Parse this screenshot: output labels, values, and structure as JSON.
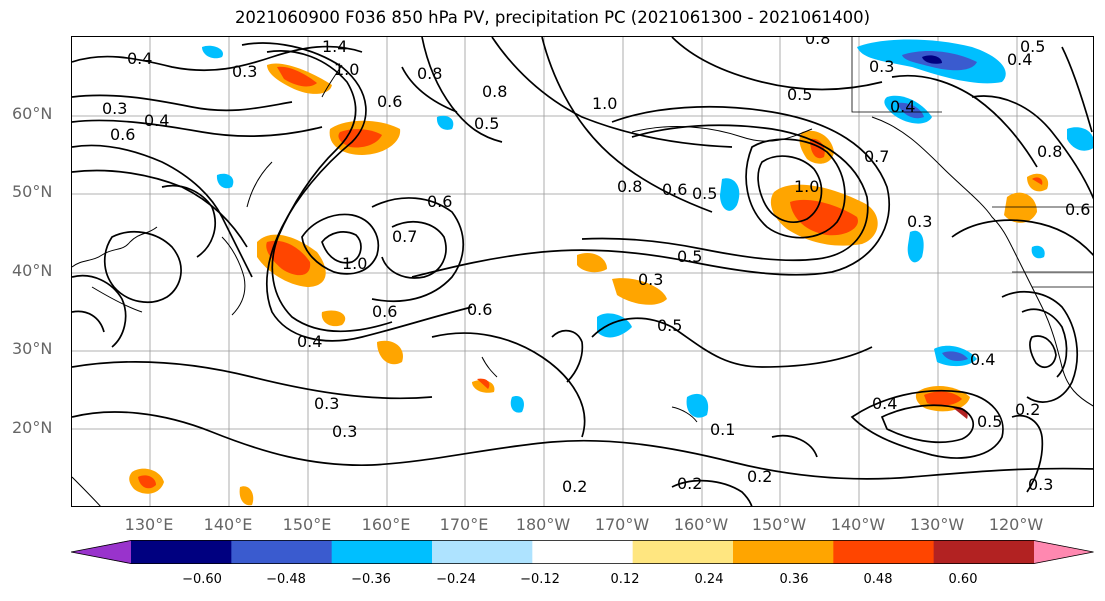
{
  "title": "2021060900 F036 850 hPa PV, precipitation PC (2021061300 - 2021061400)",
  "lat_labels": [
    "60°N",
    "50°N",
    "40°N",
    "30°N",
    "20°N"
  ],
  "lon_labels": [
    "130°E",
    "140°E",
    "150°E",
    "160°E",
    "170°E",
    "180°W",
    "170°W",
    "160°W",
    "150°W",
    "140°W",
    "130°W",
    "120°W"
  ],
  "colorbar": {
    "colors": [
      "#9933cc",
      "#000080",
      "#3a5bcf",
      "#00bfff",
      "#aee3ff",
      "#ffffff",
      "#ffe680",
      "#ffa500",
      "#ff4500",
      "#b22222",
      "#ff88b0"
    ],
    "ticks": [
      "−0.60",
      "−0.48",
      "−0.36",
      "−0.24",
      "−0.12",
      "0.12",
      "0.24",
      "0.36",
      "0.48",
      "0.60"
    ]
  },
  "contour_labels": [
    "0.4",
    "0.3",
    "0.3",
    "0.4",
    "0.6",
    "1.0",
    "1.4",
    "0.8",
    "0.5",
    "0.6",
    "0.8",
    "0.6",
    "0.5",
    "1.0",
    "0.8",
    "0.7",
    "1.0",
    "1.0",
    "0.6",
    "0.5",
    "0.5",
    "0.3",
    "0.5",
    "0.6",
    "0.4",
    "0.6",
    "0.3",
    "0.3",
    "0.2",
    "0.2",
    "0.2",
    "0.4",
    "0.4",
    "0.2",
    "0.3",
    "0.3",
    "0.4",
    "0.5",
    "0.4",
    "0.5",
    "0.6",
    "0.1",
    "0.8",
    "0.7",
    "0.8",
    "0.3"
  ]
}
